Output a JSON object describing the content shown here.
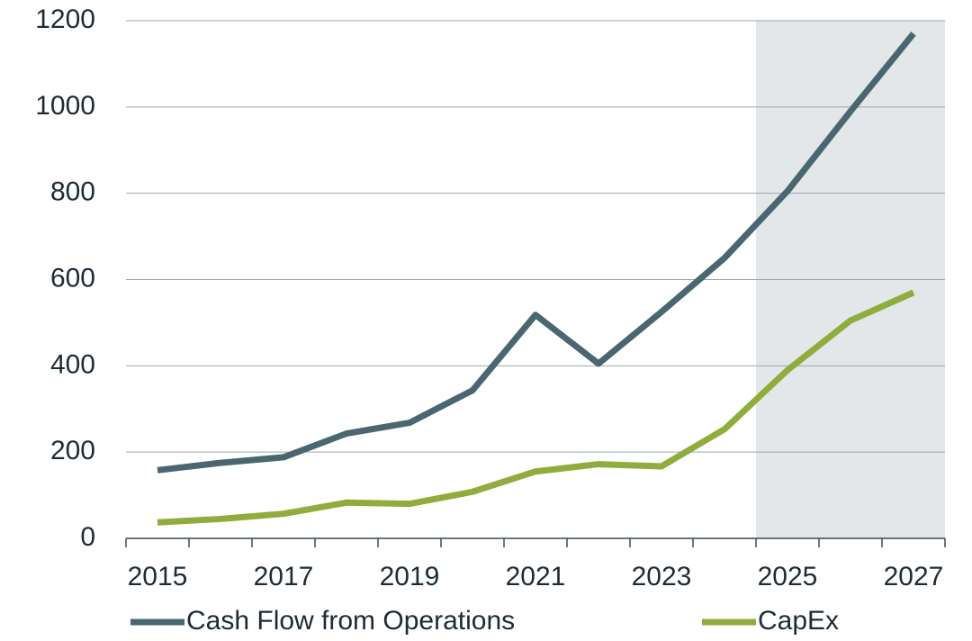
{
  "chart_data": {
    "type": "line",
    "categories": [
      "2015",
      null,
      "2017",
      null,
      "2019",
      null,
      "2021",
      null,
      "2023",
      null,
      "2025",
      null,
      "2027"
    ],
    "series": [
      {
        "name": "Cash Flow from Operations",
        "color": "#4a6670",
        "values": [
          158,
          175,
          188,
          243,
          268,
          343,
          518,
          405,
          525,
          650,
          805,
          990,
          1170
        ]
      },
      {
        "name": "CapEx",
        "color": "#8fad3c",
        "values": [
          37,
          45,
          57,
          83,
          80,
          108,
          155,
          172,
          167,
          253,
          390,
          505,
          570
        ]
      }
    ],
    "ylim": [
      0,
      1200
    ],
    "yticks": [
      0,
      200,
      400,
      600,
      800,
      1000,
      1200
    ],
    "grid": true,
    "shade": {
      "from": "2025",
      "to": "2027",
      "color": "#e3e7ea"
    },
    "legend": "bottom"
  }
}
